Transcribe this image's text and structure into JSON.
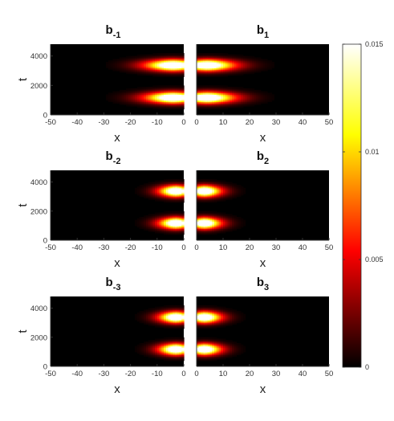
{
  "chart_data": {
    "type": "heatmap",
    "colormap": "hot",
    "colorbar": {
      "min": 0,
      "max": 0.015,
      "ticks": [
        0,
        0.005,
        0.01,
        0.015
      ],
      "tick_labels": [
        "0",
        "0.005",
        "0.01",
        "0.015"
      ]
    },
    "ylabel": "t",
    "xlabel": "x",
    "ylim": [
      0,
      4800
    ],
    "yticks": [
      0,
      2000,
      4000
    ],
    "ytick_labels": [
      "0",
      "2000",
      "4000"
    ],
    "blob_t_centers": [
      1200,
      3400
    ],
    "blob_t_halfwidth": 380,
    "panels": [
      {
        "title_base": "b",
        "title_sub": "-1",
        "side": "left",
        "xlim": [
          -50,
          0
        ],
        "xticks": [
          -50,
          -40,
          -30,
          -20,
          -10,
          0
        ],
        "xtick_labels": [
          "-50",
          "-40",
          "-30",
          "-20",
          "-10",
          "0"
        ],
        "peak_x": -4,
        "x_decay": 10
      },
      {
        "title_base": "b",
        "title_sub": "1",
        "side": "right",
        "xlim": [
          0,
          50
        ],
        "xticks": [
          0,
          10,
          20,
          30,
          40,
          50
        ],
        "xtick_labels": [
          "0",
          "10",
          "20",
          "30",
          "40",
          "50"
        ],
        "peak_x": 4,
        "x_decay": 10
      },
      {
        "title_base": "b",
        "title_sub": "-2",
        "side": "left",
        "xlim": [
          -50,
          0
        ],
        "xticks": [
          -50,
          -40,
          -30,
          -20,
          -10,
          0
        ],
        "xtick_labels": [
          "-50",
          "-40",
          "-30",
          "-20",
          "-10",
          "0"
        ],
        "peak_x": -3,
        "x_decay": 6
      },
      {
        "title_base": "b",
        "title_sub": "2",
        "side": "right",
        "xlim": [
          0,
          50
        ],
        "xticks": [
          0,
          10,
          20,
          30,
          40,
          50
        ],
        "xtick_labels": [
          "0",
          "10",
          "20",
          "30",
          "40",
          "50"
        ],
        "peak_x": 3,
        "x_decay": 6
      },
      {
        "title_base": "b",
        "title_sub": "-3",
        "side": "left",
        "xlim": [
          -50,
          0
        ],
        "xticks": [
          -50,
          -40,
          -30,
          -20,
          -10,
          0
        ],
        "xtick_labels": [
          "-50",
          "-40",
          "-30",
          "-20",
          "-10",
          "0"
        ],
        "peak_x": -3,
        "x_decay": 6
      },
      {
        "title_base": "b",
        "title_sub": "3",
        "side": "right",
        "xlim": [
          0,
          50
        ],
        "xticks": [
          0,
          10,
          20,
          30,
          40,
          50
        ],
        "xtick_labels": [
          "0",
          "10",
          "20",
          "30",
          "40",
          "50"
        ],
        "peak_x": 3,
        "x_decay": 6
      }
    ]
  }
}
